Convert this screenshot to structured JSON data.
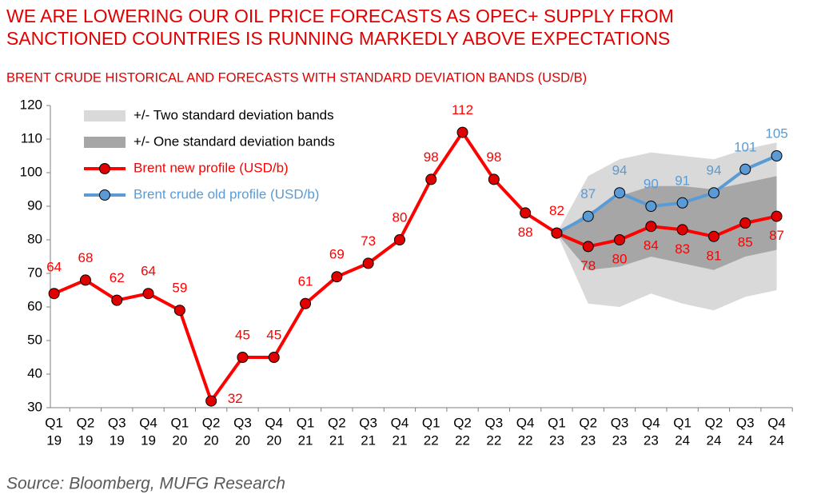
{
  "chart_data": {
    "type": "line",
    "title": [
      "WE ARE LOWERING OUR OIL PRICE FORECASTS AS OPEC+ SUPPLY FROM",
      "SANCTIONED COUNTRIES IS RUNNING MARKEDLY ABOVE EXPECTATIONS"
    ],
    "subtitle": "BRENT CRUDE HISTORICAL AND FORECASTS WITH STANDARD DEVIATION BANDS (USD/B)",
    "source": "Source: Bloomberg, MUFG Research",
    "categories": [
      [
        "Q1",
        "19"
      ],
      [
        "Q2",
        "19"
      ],
      [
        "Q3",
        "19"
      ],
      [
        "Q4",
        "19"
      ],
      [
        "Q1",
        "20"
      ],
      [
        "Q2",
        "20"
      ],
      [
        "Q3",
        "20"
      ],
      [
        "Q4",
        "20"
      ],
      [
        "Q1",
        "21"
      ],
      [
        "Q2",
        "21"
      ],
      [
        "Q3",
        "21"
      ],
      [
        "Q4",
        "21"
      ],
      [
        "Q1",
        "22"
      ],
      [
        "Q2",
        "22"
      ],
      [
        "Q3",
        "22"
      ],
      [
        "Q4",
        "22"
      ],
      [
        "Q1",
        "23"
      ],
      [
        "Q2",
        "23"
      ],
      [
        "Q3",
        "23"
      ],
      [
        "Q4",
        "23"
      ],
      [
        "Q1",
        "24"
      ],
      [
        "Q2",
        "24"
      ],
      [
        "Q3",
        "24"
      ],
      [
        "Q4",
        "24"
      ]
    ],
    "ylim": [
      30,
      120
    ],
    "yticks": [
      30,
      40,
      50,
      60,
      70,
      80,
      90,
      100,
      110,
      120
    ],
    "bands": [
      {
        "name": "+/- Two standard deviation bands",
        "color": "#d9d9d9",
        "lower": [
          null,
          null,
          null,
          null,
          null,
          null,
          null,
          null,
          null,
          null,
          null,
          null,
          null,
          null,
          null,
          null,
          82,
          61,
          60,
          64,
          61,
          59,
          63,
          65
        ],
        "upper": [
          null,
          null,
          null,
          null,
          null,
          null,
          null,
          null,
          null,
          null,
          null,
          null,
          null,
          null,
          null,
          null,
          82,
          99,
          104,
          106,
          105,
          104,
          107,
          109
        ]
      },
      {
        "name": "+/- One standard deviation bands",
        "color": "#a6a6a6",
        "lower": [
          null,
          null,
          null,
          null,
          null,
          null,
          null,
          null,
          null,
          null,
          null,
          null,
          null,
          null,
          null,
          null,
          82,
          71,
          72,
          75,
          73,
          71,
          75,
          77
        ],
        "upper": [
          null,
          null,
          null,
          null,
          null,
          null,
          null,
          null,
          null,
          null,
          null,
          null,
          null,
          null,
          null,
          null,
          82,
          88,
          93,
          96,
          96,
          95,
          97,
          99
        ]
      }
    ],
    "series": [
      {
        "name": "Brent new profile (USD/b)",
        "color": "#ff0000",
        "marker": "#e00000",
        "values": [
          64,
          68,
          62,
          64,
          59,
          32,
          45,
          45,
          61,
          69,
          73,
          80,
          98,
          112,
          98,
          88,
          82,
          78,
          80,
          84,
          83,
          81,
          85,
          87
        ]
      },
      {
        "name": "Brent crude old profile (USD/b)",
        "color": "#5b9bd5",
        "marker": "#5b9bd5",
        "values": [
          null,
          null,
          null,
          null,
          null,
          null,
          null,
          null,
          null,
          null,
          null,
          null,
          null,
          null,
          null,
          null,
          82,
          87,
          94,
          90,
          91,
          94,
          101,
          105
        ]
      }
    ]
  }
}
